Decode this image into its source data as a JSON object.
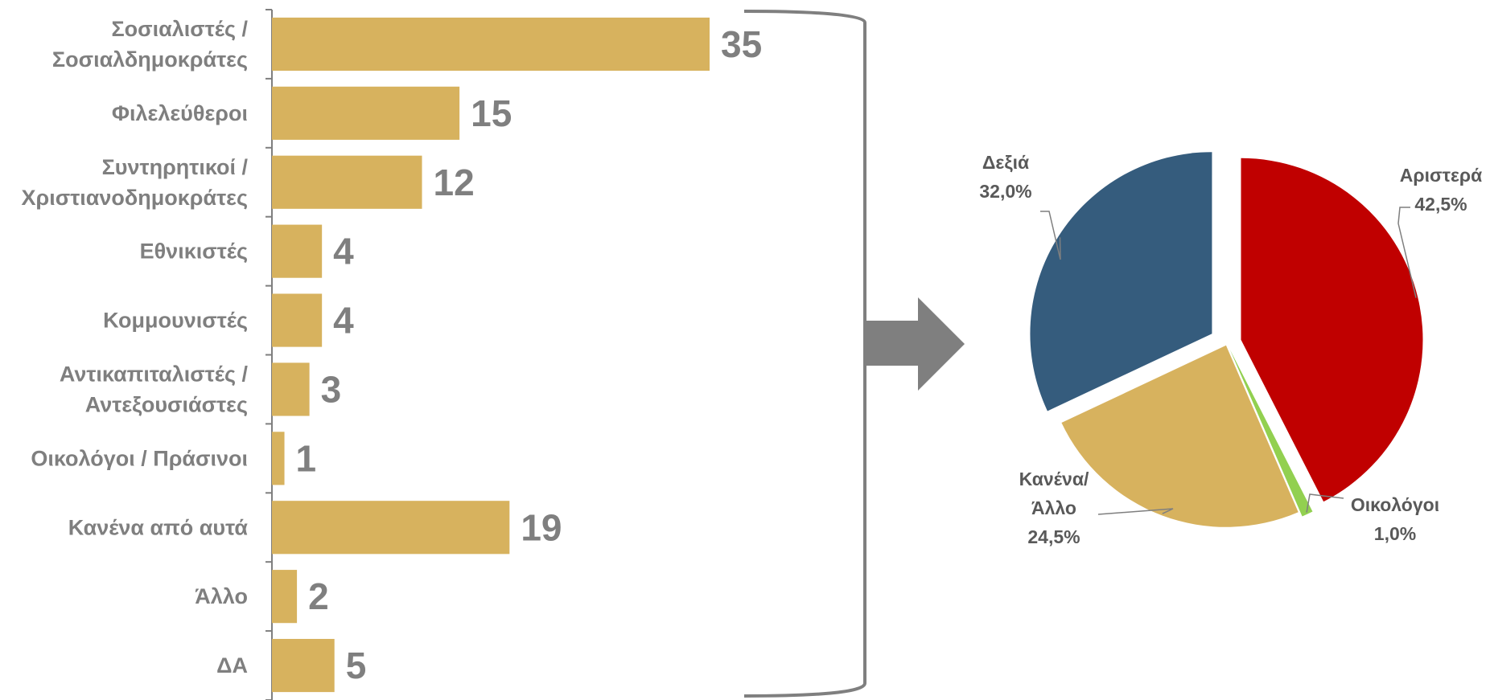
{
  "chart_data": [
    {
      "type": "bar",
      "orientation": "horizontal",
      "title": "",
      "xlabel": "",
      "ylabel": "",
      "xlim": [
        0,
        35
      ],
      "grid": false,
      "bar_color": "#D7B25E",
      "label_color": "#7F7F7F",
      "categories": [
        [
          "Σοσιαλιστές /",
          "Σοσιαλδημοκράτες"
        ],
        [
          "Φιλελεύθεροι"
        ],
        [
          "Συντηρητικοί /",
          "Χριστιανοδημοκράτες"
        ],
        [
          "Εθνικιστές"
        ],
        [
          "Κομμουνιστές"
        ],
        [
          "Αντικαπιταλιστές /",
          "Αντεξουσιάστες"
        ],
        [
          "Οικολόγοι / Πράσινοι"
        ],
        [
          "Κανένα από αυτά"
        ],
        [
          "Άλλο"
        ],
        [
          "ΔΑ"
        ]
      ],
      "values": [
        35,
        15,
        12,
        4,
        4,
        3,
        1,
        19,
        2,
        5
      ]
    },
    {
      "type": "pie",
      "title": "",
      "slices": [
        {
          "label": [
            "Αριστερά"
          ],
          "value_text": "42,5%",
          "value": 42.5,
          "color": "#C00000"
        },
        {
          "label": [
            "Οικολόγοι"
          ],
          "value_text": "1,0%",
          "value": 1.0,
          "color": "#92D050"
        },
        {
          "label": [
            "Κανένα/",
            "Άλλο"
          ],
          "value_text": "24,5%",
          "value": 24.5,
          "color": "#D7B25E"
        },
        {
          "label": [
            "Δεξιά"
          ],
          "value_text": "32,0%",
          "value": 32.0,
          "color": "#355C7D"
        }
      ]
    }
  ],
  "connector": {
    "arrow_color": "#7F7F7F",
    "bracket_color": "#7F7F7F"
  }
}
